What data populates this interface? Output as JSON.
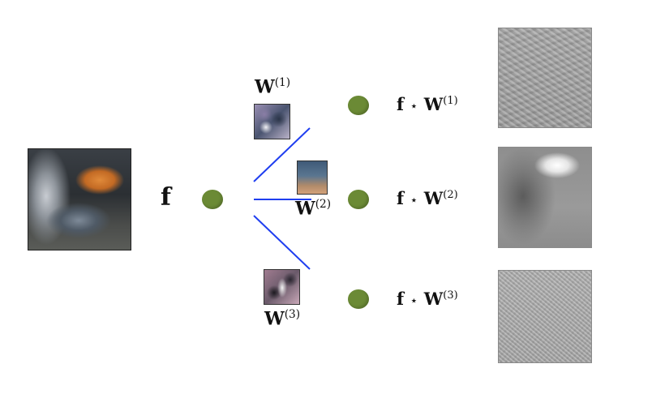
{
  "input": {
    "label": "f"
  },
  "filters": [
    {
      "symbol": "W",
      "index": "(1)"
    },
    {
      "symbol": "W",
      "index": "(2)"
    },
    {
      "symbol": "W",
      "index": "(3)"
    }
  ],
  "outputs": [
    {
      "lhs": "f",
      "op": "⋆",
      "symbol": "W",
      "index": "(1)"
    },
    {
      "lhs": "f",
      "op": "⋆",
      "symbol": "W",
      "index": "(2)"
    },
    {
      "lhs": "f",
      "op": "⋆",
      "symbol": "W",
      "index": "(3)"
    }
  ],
  "colors": {
    "node": "#6b8a35",
    "edge": "#1f3ef0"
  }
}
